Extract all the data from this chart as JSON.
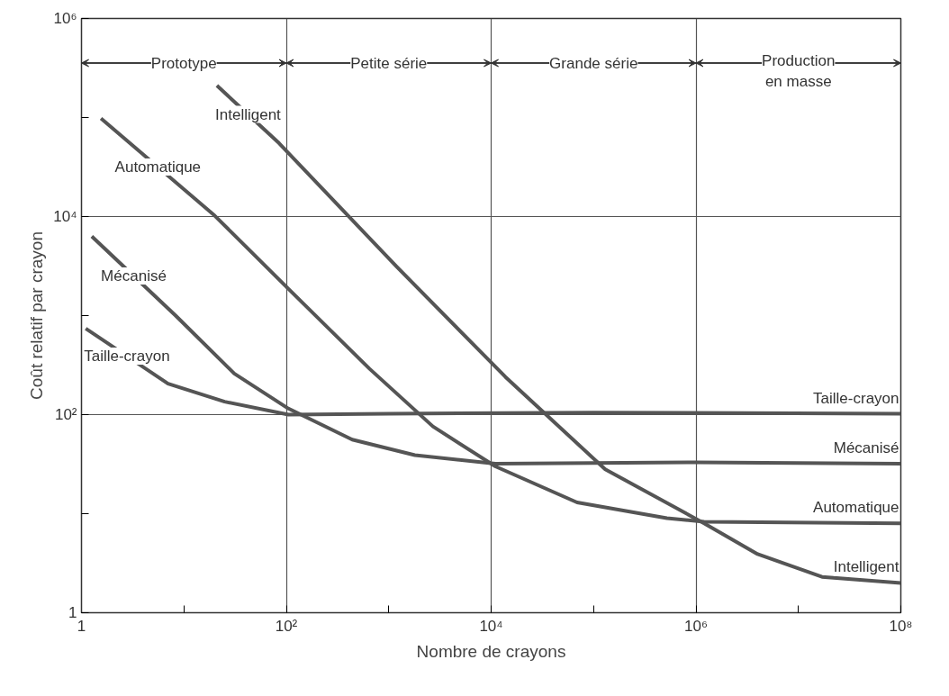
{
  "chart_data": {
    "type": "line",
    "xlabel": "Nombre de crayons",
    "ylabel": "Coût relatif par crayon",
    "log": "xy",
    "grid": true,
    "marker": "none",
    "line_style": "solid",
    "xlim": [
      1,
      100000000
    ],
    "ylim": [
      1,
      1000000
    ],
    "xticks": [
      {
        "value": 1,
        "label": "1"
      },
      {
        "value": 10,
        "label": null
      },
      {
        "value": 100,
        "label": "10²"
      },
      {
        "value": 1000,
        "label": null
      },
      {
        "value": 10000,
        "label": "10⁴"
      },
      {
        "value": 100000,
        "label": null
      },
      {
        "value": 1000000,
        "label": "10⁶"
      },
      {
        "value": 10000000,
        "label": null
      },
      {
        "value": 100000000,
        "label": "10⁸"
      }
    ],
    "yticks": [
      {
        "value": 1,
        "label": "1"
      },
      {
        "value": 10,
        "label": null
      },
      {
        "value": 100,
        "label": "10²"
      },
      {
        "value": 1000,
        "label": null
      },
      {
        "value": 10000,
        "label": "10⁴"
      },
      {
        "value": 100000,
        "label": null
      },
      {
        "value": 1000000,
        "label": "10⁶"
      }
    ],
    "series": [
      {
        "name": "Taille-crayon",
        "color": "#555555",
        "x": [
          1.1,
          7,
          25,
          105,
          1000,
          100000,
          100000000
        ],
        "values": [
          740,
          205,
          135,
          100,
          102,
          105,
          102
        ]
      },
      {
        "name": "Mécanisé",
        "color": "#555555",
        "x": [
          1.26,
          8.3,
          31,
          105,
          440,
          1800,
          11000,
          1000000,
          100000000
        ],
        "values": [
          6300,
          1000,
          260,
          115,
          56,
          39,
          32,
          33,
          32
        ]
      },
      {
        "name": "Automatique",
        "color": "#555555",
        "x": [
          1.55,
          20,
          105,
          650,
          2700,
          11000,
          69000,
          520000,
          1200000,
          100000000
        ],
        "values": [
          98000,
          10200,
          1860,
          290,
          76,
          30,
          13,
          9,
          8.3,
          8
        ]
      },
      {
        "name": "Intelligent",
        "color": "#555555",
        "x": [
          21,
          85,
          1200,
          13800,
          130000,
          1200000,
          4000000,
          17000000,
          100000000
        ],
        "values": [
          210000,
          55000,
          3100,
          240,
          28,
          8,
          3.9,
          2.3,
          2
        ]
      }
    ],
    "annotations": [
      "Taille-crayon",
      "Mécanisé",
      "Automatique",
      "Intelligent",
      "Prototype",
      "Petite série",
      "Grande série",
      "Production en masse"
    ]
  }
}
